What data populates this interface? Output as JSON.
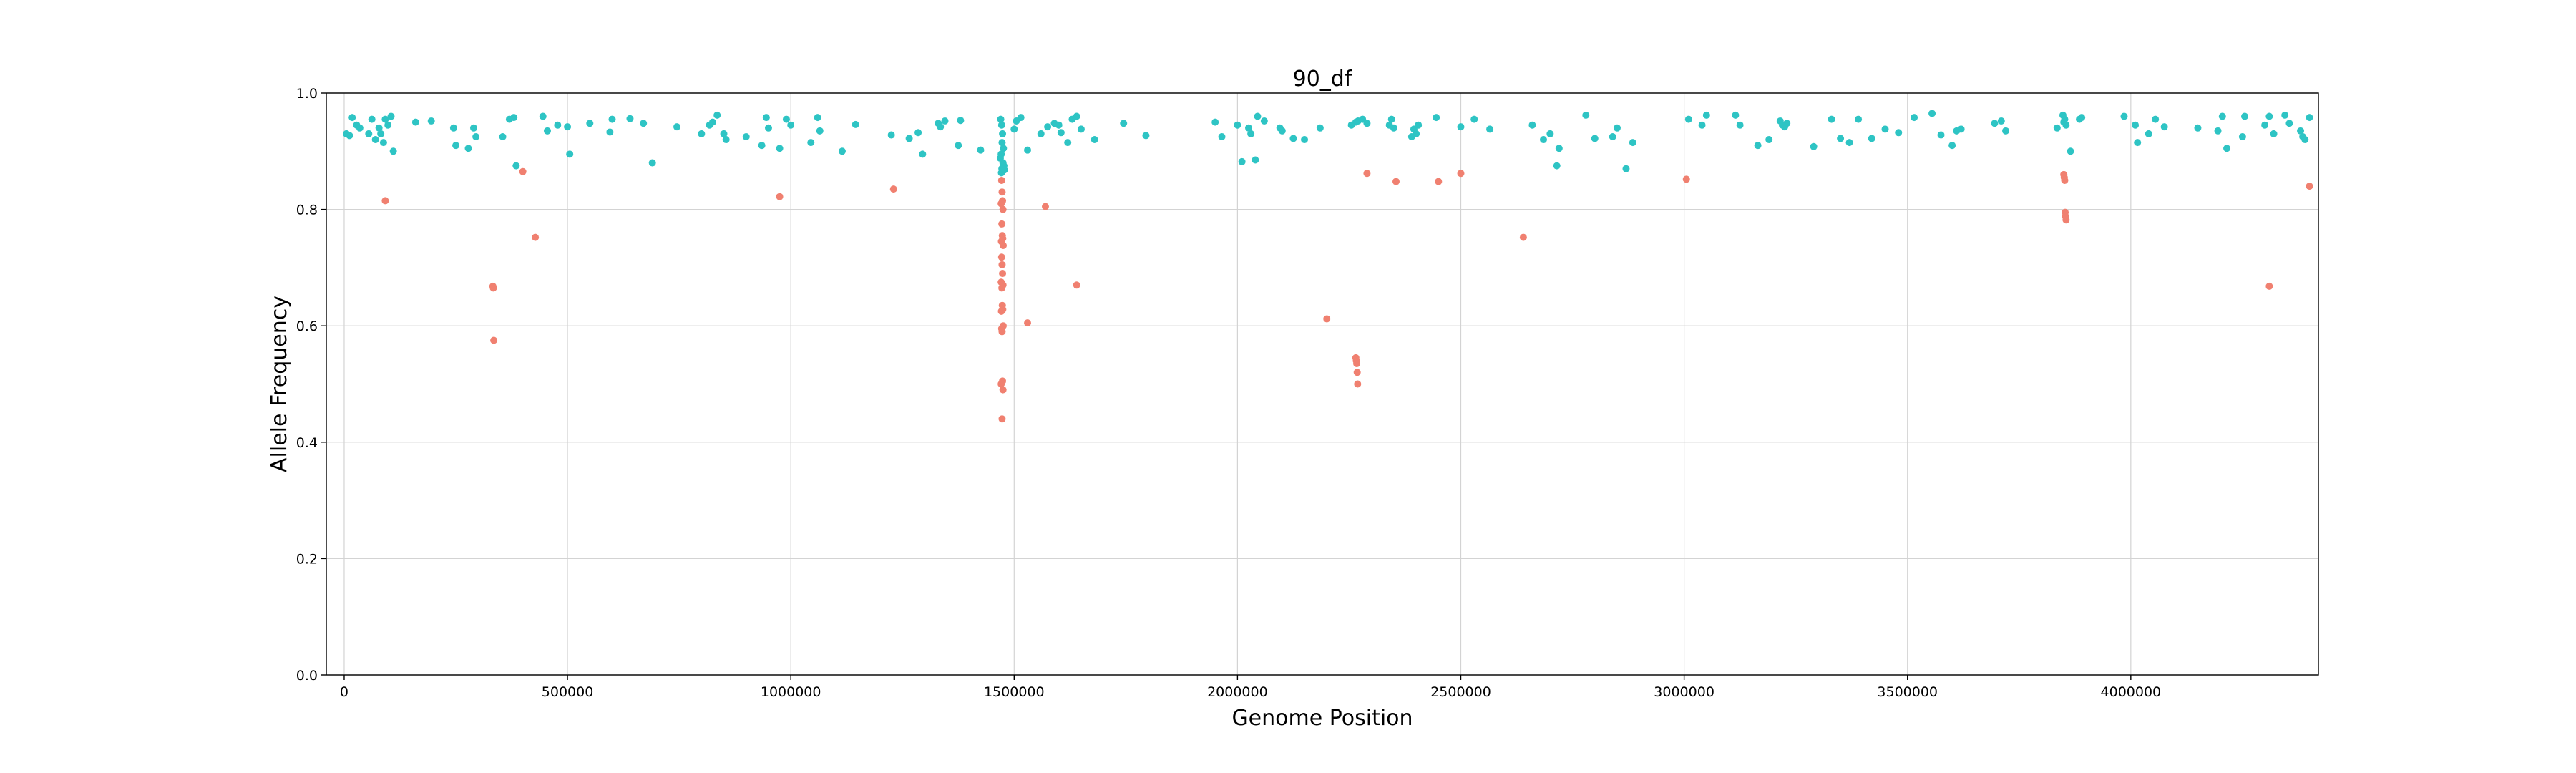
{
  "chart_data": {
    "type": "scatter",
    "title": "90_df",
    "xlabel": "Genome Position",
    "ylabel": "Allele Frequency",
    "xlim": [
      -40000,
      4420000
    ],
    "ylim": [
      0.0,
      1.0
    ],
    "xticks": [
      0,
      500000,
      1000000,
      1500000,
      2000000,
      2500000,
      3000000,
      3500000,
      4000000
    ],
    "xtick_labels": [
      "0",
      "500000",
      "1000000",
      "1500000",
      "2000000",
      "2500000",
      "3000000",
      "3500000",
      "4000000"
    ],
    "yticks": [
      0.0,
      0.2,
      0.4,
      0.6,
      0.8,
      1.0
    ],
    "ytick_labels": [
      "0.0",
      "0.2",
      "0.4",
      "0.6",
      "0.8",
      "1.0"
    ],
    "grid": true,
    "colors": {
      "high": "#2ec4c4",
      "low": "#f08070"
    },
    "series": [
      {
        "color_key": "high",
        "points": [
          [
            5000,
            0.93
          ],
          [
            12000,
            0.927
          ],
          [
            18000,
            0.958
          ],
          [
            28000,
            0.945
          ],
          [
            35000,
            0.94
          ],
          [
            55000,
            0.93
          ],
          [
            62000,
            0.955
          ],
          [
            70000,
            0.92
          ],
          [
            78000,
            0.94
          ],
          [
            82000,
            0.93
          ],
          [
            88000,
            0.915
          ],
          [
            92000,
            0.955
          ],
          [
            98000,
            0.945
          ],
          [
            105000,
            0.96
          ],
          [
            110000,
            0.9
          ],
          [
            160000,
            0.95
          ],
          [
            195000,
            0.952
          ],
          [
            245000,
            0.94
          ],
          [
            250000,
            0.91
          ],
          [
            278000,
            0.905
          ],
          [
            290000,
            0.94
          ],
          [
            295000,
            0.925
          ],
          [
            355000,
            0.925
          ],
          [
            370000,
            0.955
          ],
          [
            380000,
            0.958
          ],
          [
            385000,
            0.875
          ],
          [
            445000,
            0.96
          ],
          [
            455000,
            0.935
          ],
          [
            478000,
            0.945
          ],
          [
            500000,
            0.942
          ],
          [
            505000,
            0.895
          ],
          [
            550000,
            0.948
          ],
          [
            595000,
            0.933
          ],
          [
            600000,
            0.955
          ],
          [
            640000,
            0.956
          ],
          [
            670000,
            0.948
          ],
          [
            690000,
            0.88
          ],
          [
            745000,
            0.942
          ],
          [
            800000,
            0.93
          ],
          [
            818000,
            0.945
          ],
          [
            825000,
            0.95
          ],
          [
            835000,
            0.962
          ],
          [
            850000,
            0.93
          ],
          [
            855000,
            0.92
          ],
          [
            900000,
            0.925
          ],
          [
            935000,
            0.91
          ],
          [
            945000,
            0.958
          ],
          [
            950000,
            0.94
          ],
          [
            975000,
            0.905
          ],
          [
            990000,
            0.955
          ],
          [
            1000000,
            0.945
          ],
          [
            1045000,
            0.915
          ],
          [
            1060000,
            0.958
          ],
          [
            1065000,
            0.935
          ],
          [
            1115000,
            0.9
          ],
          [
            1145000,
            0.946
          ],
          [
            1225000,
            0.928
          ],
          [
            1265000,
            0.922
          ],
          [
            1285000,
            0.932
          ],
          [
            1295000,
            0.895
          ],
          [
            1330000,
            0.948
          ],
          [
            1335000,
            0.942
          ],
          [
            1345000,
            0.952
          ],
          [
            1375000,
            0.91
          ],
          [
            1380000,
            0.953
          ],
          [
            1425000,
            0.902
          ],
          [
            1470000,
            0.955
          ],
          [
            1472000,
            0.945
          ],
          [
            1474000,
            0.93
          ],
          [
            1473000,
            0.915
          ],
          [
            1476000,
            0.905
          ],
          [
            1471000,
            0.895
          ],
          [
            1469000,
            0.888
          ],
          [
            1475000,
            0.88
          ],
          [
            1477000,
            0.875
          ],
          [
            1472500,
            0.87
          ],
          [
            1478000,
            0.868
          ],
          [
            1471500,
            0.863
          ],
          [
            1500000,
            0.938
          ],
          [
            1505000,
            0.952
          ],
          [
            1515000,
            0.958
          ],
          [
            1530000,
            0.902
          ],
          [
            1560000,
            0.93
          ],
          [
            1575000,
            0.942
          ],
          [
            1590000,
            0.948
          ],
          [
            1600000,
            0.945
          ],
          [
            1605000,
            0.932
          ],
          [
            1620000,
            0.915
          ],
          [
            1630000,
            0.955
          ],
          [
            1640000,
            0.96
          ],
          [
            1650000,
            0.938
          ],
          [
            1680000,
            0.92
          ],
          [
            1745000,
            0.948
          ],
          [
            1795000,
            0.927
          ],
          [
            1950000,
            0.95
          ],
          [
            1965000,
            0.925
          ],
          [
            2000000,
            0.945
          ],
          [
            2010000,
            0.882
          ],
          [
            2025000,
            0.94
          ],
          [
            2030000,
            0.93
          ],
          [
            2040000,
            0.885
          ],
          [
            2045000,
            0.96
          ],
          [
            2060000,
            0.952
          ],
          [
            2095000,
            0.94
          ],
          [
            2100000,
            0.935
          ],
          [
            2125000,
            0.922
          ],
          [
            2150000,
            0.92
          ],
          [
            2185000,
            0.94
          ],
          [
            2255000,
            0.945
          ],
          [
            2265000,
            0.95
          ],
          [
            2270000,
            0.952
          ],
          [
            2280000,
            0.955
          ],
          [
            2290000,
            0.948
          ],
          [
            2340000,
            0.945
          ],
          [
            2345000,
            0.955
          ],
          [
            2350000,
            0.94
          ],
          [
            2390000,
            0.925
          ],
          [
            2395000,
            0.938
          ],
          [
            2400000,
            0.93
          ],
          [
            2405000,
            0.945
          ],
          [
            2445000,
            0.958
          ],
          [
            2500000,
            0.942
          ],
          [
            2530000,
            0.955
          ],
          [
            2565000,
            0.938
          ],
          [
            2660000,
            0.945
          ],
          [
            2685000,
            0.92
          ],
          [
            2700000,
            0.93
          ],
          [
            2715000,
            0.875
          ],
          [
            2720000,
            0.905
          ],
          [
            2780000,
            0.962
          ],
          [
            2800000,
            0.922
          ],
          [
            2840000,
            0.925
          ],
          [
            2850000,
            0.94
          ],
          [
            2870000,
            0.87
          ],
          [
            2885000,
            0.915
          ],
          [
            3010000,
            0.955
          ],
          [
            3040000,
            0.945
          ],
          [
            3050000,
            0.962
          ],
          [
            3115000,
            0.962
          ],
          [
            3125000,
            0.945
          ],
          [
            3165000,
            0.91
          ],
          [
            3190000,
            0.92
          ],
          [
            3215000,
            0.952
          ],
          [
            3220000,
            0.945
          ],
          [
            3225000,
            0.942
          ],
          [
            3230000,
            0.948
          ],
          [
            3290000,
            0.908
          ],
          [
            3330000,
            0.955
          ],
          [
            3350000,
            0.922
          ],
          [
            3370000,
            0.915
          ],
          [
            3390000,
            0.955
          ],
          [
            3420000,
            0.922
          ],
          [
            3450000,
            0.938
          ],
          [
            3480000,
            0.932
          ],
          [
            3515000,
            0.958
          ],
          [
            3555000,
            0.965
          ],
          [
            3575000,
            0.928
          ],
          [
            3600000,
            0.91
          ],
          [
            3610000,
            0.935
          ],
          [
            3620000,
            0.938
          ],
          [
            3695000,
            0.948
          ],
          [
            3710000,
            0.952
          ],
          [
            3720000,
            0.935
          ],
          [
            3835000,
            0.94
          ],
          [
            3848000,
            0.962
          ],
          [
            3850000,
            0.95
          ],
          [
            3852000,
            0.955
          ],
          [
            3855000,
            0.945
          ],
          [
            3865000,
            0.9
          ],
          [
            3890000,
            0.958
          ],
          [
            3885000,
            0.955
          ],
          [
            3985000,
            0.96
          ],
          [
            4010000,
            0.945
          ],
          [
            4015000,
            0.915
          ],
          [
            4040000,
            0.93
          ],
          [
            4055000,
            0.955
          ],
          [
            4075000,
            0.942
          ],
          [
            4150000,
            0.94
          ],
          [
            4195000,
            0.935
          ],
          [
            4205000,
            0.96
          ],
          [
            4215000,
            0.905
          ],
          [
            4250000,
            0.925
          ],
          [
            4255000,
            0.96
          ],
          [
            4300000,
            0.945
          ],
          [
            4310000,
            0.96
          ],
          [
            4320000,
            0.93
          ],
          [
            4345000,
            0.962
          ],
          [
            4355000,
            0.948
          ],
          [
            4380000,
            0.935
          ],
          [
            4385000,
            0.925
          ],
          [
            4390000,
            0.92
          ],
          [
            4400000,
            0.958
          ]
        ]
      },
      {
        "color_key": "low",
        "points": [
          [
            92000,
            0.815
          ],
          [
            333000,
            0.668
          ],
          [
            334000,
            0.665
          ],
          [
            335000,
            0.575
          ],
          [
            400000,
            0.865
          ],
          [
            428000,
            0.752
          ],
          [
            975000,
            0.822
          ],
          [
            1230000,
            0.835
          ],
          [
            1472000,
            0.85
          ],
          [
            1473000,
            0.83
          ],
          [
            1474000,
            0.815
          ],
          [
            1471000,
            0.81
          ],
          [
            1475000,
            0.8
          ],
          [
            1472500,
            0.775
          ],
          [
            1473500,
            0.755
          ],
          [
            1474500,
            0.75
          ],
          [
            1471500,
            0.745
          ],
          [
            1475500,
            0.738
          ],
          [
            1472000,
            0.718
          ],
          [
            1473000,
            0.705
          ],
          [
            1474000,
            0.69
          ],
          [
            1471000,
            0.675
          ],
          [
            1475000,
            0.67
          ],
          [
            1472500,
            0.665
          ],
          [
            1473500,
            0.635
          ],
          [
            1474500,
            0.628
          ],
          [
            1471500,
            0.625
          ],
          [
            1475500,
            0.6
          ],
          [
            1472000,
            0.595
          ],
          [
            1473000,
            0.59
          ],
          [
            1474000,
            0.505
          ],
          [
            1471000,
            0.5
          ],
          [
            1475000,
            0.49
          ],
          [
            1473000,
            0.44
          ],
          [
            1530000,
            0.605
          ],
          [
            1570000,
            0.805
          ],
          [
            1640000,
            0.67
          ],
          [
            2200000,
            0.612
          ],
          [
            2265000,
            0.545
          ],
          [
            2266000,
            0.54
          ],
          [
            2267000,
            0.535
          ],
          [
            2268000,
            0.52
          ],
          [
            2269000,
            0.5
          ],
          [
            2290000,
            0.862
          ],
          [
            2355000,
            0.848
          ],
          [
            2450000,
            0.848
          ],
          [
            2500000,
            0.862
          ],
          [
            2640000,
            0.752
          ],
          [
            3005000,
            0.852
          ],
          [
            3850000,
            0.86
          ],
          [
            3851000,
            0.855
          ],
          [
            3852000,
            0.85
          ],
          [
            3853000,
            0.795
          ],
          [
            3854000,
            0.788
          ],
          [
            3855000,
            0.782
          ],
          [
            4310000,
            0.668
          ],
          [
            4400000,
            0.84
          ]
        ]
      }
    ]
  }
}
